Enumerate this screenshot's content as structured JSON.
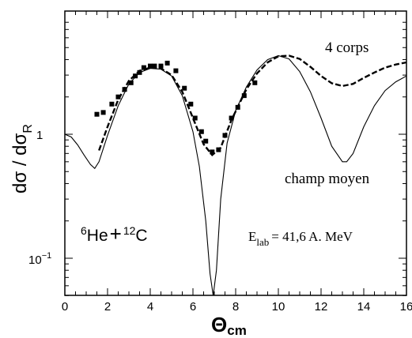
{
  "chart_data": {
    "type": "line",
    "xlabel": "Θ",
    "xlabel_sub": "cm",
    "ylabel_parts": [
      "dσ / dσ",
      "R"
    ],
    "xlim": [
      0,
      16
    ],
    "ylim": [
      0.05,
      8
    ],
    "yscale": "log",
    "grid": false,
    "x_ticks": [
      0,
      2,
      4,
      6,
      8,
      10,
      12,
      14,
      16
    ],
    "x_tick_labels": [
      "0",
      "2",
      "4",
      "6",
      "8",
      "10",
      "12",
      "14",
      "16"
    ],
    "y_ticks": [
      1,
      0.1
    ],
    "y_tick_labels": [
      "1",
      "10",
      "−1"
    ],
    "annotations": {
      "four_body": "4 corps",
      "mean_field": "champ moyen",
      "reaction": {
        "sup_a": "6",
        "a": "He",
        "plus": "+",
        "sup_b": "12",
        "b": "C"
      },
      "energy": {
        "e": "E",
        "sub": "lab",
        "rest": "= 41,6 A. MeV"
      }
    },
    "series": [
      {
        "style": "solid",
        "x": [
          0,
          0.3,
          0.6,
          0.9,
          1.2,
          1.4,
          1.6,
          2,
          2.5,
          3,
          3.5,
          4,
          4.5,
          5,
          5.5,
          6,
          6.3,
          6.6,
          6.8,
          6.95,
          7.1,
          7.3,
          7.6,
          8,
          8.5,
          9,
          9.5,
          10,
          10.5,
          11,
          11.5,
          12,
          12.5,
          13,
          13.2,
          13.5,
          14,
          14.5,
          15,
          15.5,
          16
        ],
        "y": [
          1.0,
          0.95,
          0.82,
          0.68,
          0.57,
          0.53,
          0.6,
          0.98,
          1.7,
          2.55,
          3.15,
          3.4,
          3.35,
          2.95,
          2.05,
          1.05,
          0.55,
          0.2,
          0.075,
          0.05,
          0.08,
          0.3,
          0.85,
          1.55,
          2.4,
          3.3,
          4.0,
          4.3,
          4.05,
          3.2,
          2.2,
          1.35,
          0.8,
          0.6,
          0.6,
          0.7,
          1.15,
          1.7,
          2.25,
          2.65,
          2.95
        ]
      },
      {
        "style": "dashed",
        "x": [
          1.6,
          2,
          2.5,
          3,
          3.5,
          4,
          4.5,
          5,
          5.5,
          6,
          6.5,
          6.9,
          7.3,
          7.8,
          8.5,
          9,
          9.5,
          10,
          10.5,
          11,
          11.5,
          12,
          12.5,
          13,
          13.5,
          14,
          14.5,
          15,
          15.5,
          16
        ],
        "y": [
          0.74,
          1.15,
          1.9,
          2.7,
          3.25,
          3.45,
          3.4,
          3.0,
          2.2,
          1.35,
          0.83,
          0.68,
          0.78,
          1.3,
          2.3,
          3.1,
          3.8,
          4.25,
          4.3,
          4.05,
          3.5,
          2.95,
          2.58,
          2.45,
          2.55,
          2.85,
          3.15,
          3.45,
          3.65,
          3.8
        ]
      },
      {
        "style": "markers",
        "x": [
          1.5,
          1.8,
          2.2,
          2.5,
          2.8,
          3.1,
          3.3,
          3.5,
          3.7,
          4.0,
          4.2,
          4.5,
          4.8,
          5.2,
          5.6,
          5.9,
          6.1,
          6.4,
          6.6,
          6.9,
          7.2,
          7.5,
          7.8,
          8.1,
          8.4,
          8.9
        ],
        "y": [
          1.45,
          1.5,
          1.75,
          2.0,
          2.3,
          2.6,
          2.95,
          3.15,
          3.45,
          3.55,
          3.55,
          3.55,
          3.75,
          3.25,
          2.35,
          1.75,
          1.35,
          1.05,
          0.88,
          0.72,
          0.75,
          0.98,
          1.35,
          1.65,
          2.05,
          2.6
        ]
      }
    ]
  }
}
